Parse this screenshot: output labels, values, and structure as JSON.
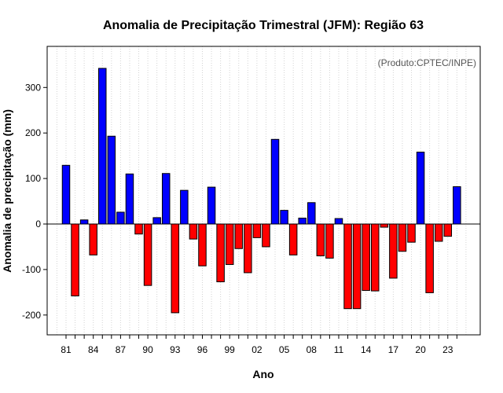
{
  "chart_data": {
    "type": "bar",
    "title": "Anomalia de Precipitação Trimestral (JFM): Região 63",
    "credit": "(Produto:CPTEC/INPE)",
    "xlabel": "Ano",
    "ylabel": "Anomalia de precipitação (mm)",
    "ylim": [
      -245,
      393
    ],
    "yticks": [
      -200,
      -100,
      0,
      100,
      200,
      300
    ],
    "ytick_labels": [
      "-200",
      "-100",
      "0",
      "100",
      "200",
      "300"
    ],
    "grid": "vertical dotted",
    "categories": [
      "81",
      "82",
      "83",
      "84",
      "85",
      "86",
      "87",
      "88",
      "89",
      "90",
      "91",
      "92",
      "93",
      "94",
      "95",
      "96",
      "97",
      "98",
      "99",
      "00",
      "01",
      "02",
      "03",
      "04",
      "05",
      "06",
      "07",
      "08",
      "09",
      "10",
      "11",
      "12",
      "13",
      "14",
      "15",
      "16",
      "17",
      "18",
      "19",
      "20",
      "21",
      "22",
      "23",
      "24"
    ],
    "shown_tick_labels": [
      "81",
      "84",
      "87",
      "90",
      "93",
      "96",
      "99",
      "02",
      "05",
      "08",
      "11",
      "14",
      "17",
      "20",
      "23"
    ],
    "values": [
      129,
      -158,
      9,
      -68,
      342,
      193,
      26,
      110,
      -22,
      -135,
      14,
      111,
      -195,
      74,
      -33,
      -92,
      81,
      -127,
      -89,
      -54,
      -107,
      -30,
      -50,
      186,
      30,
      -68,
      13,
      47,
      -70,
      -75,
      12,
      -186,
      -186,
      -146,
      -147,
      -7,
      -119,
      -60,
      -40,
      158,
      -151,
      -38,
      -27,
      82
    ],
    "colors": {
      "positive": "#0000ff",
      "negative": "#ff0000",
      "zero_line": "#000000",
      "grid": "#d3d3d3"
    }
  }
}
